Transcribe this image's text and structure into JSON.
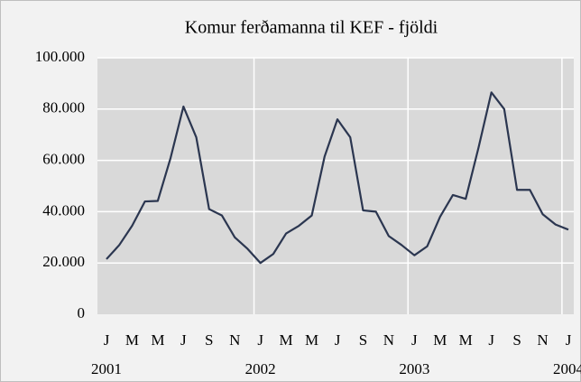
{
  "chart_data": {
    "type": "line",
    "title": "Komur ferðamanna til KEF - fjöldi",
    "categories": [
      "J",
      null,
      "M",
      null,
      "M",
      null,
      "J",
      null,
      "S",
      null,
      "N",
      null,
      "J",
      null,
      "M",
      null,
      "M",
      null,
      "J",
      null,
      "S",
      null,
      "N",
      null,
      "J",
      null,
      "M",
      null,
      "M",
      null,
      "J",
      null,
      "S",
      null,
      "N",
      null,
      "J"
    ],
    "year_labels": [
      "2001",
      "2002",
      "2003",
      "2004"
    ],
    "series": [
      {
        "name": "Komur",
        "color": "#2b3650",
        "values": [
          21500,
          27000,
          34500,
          44000,
          44200,
          61000,
          81000,
          69000,
          41000,
          38500,
          30000,
          25500,
          20000,
          23500,
          31500,
          34500,
          38500,
          61500,
          76000,
          69000,
          40500,
          40000,
          30500,
          27000,
          23000,
          26500,
          38000,
          46500,
          45000,
          65000,
          86500,
          80000,
          48500,
          48500,
          39000,
          35000,
          33000
        ]
      }
    ],
    "ylim": [
      0,
      100000
    ],
    "yticks": [
      0,
      {
        "value": 20000,
        "label": "20.000"
      },
      {
        "value": 40000,
        "label": "40.000"
      },
      {
        "value": 60000,
        "label": "60.000"
      },
      {
        "value": 80000,
        "label": "80.000"
      },
      {
        "value": 100000,
        "label": "100.000"
      }
    ],
    "grid": true
  }
}
